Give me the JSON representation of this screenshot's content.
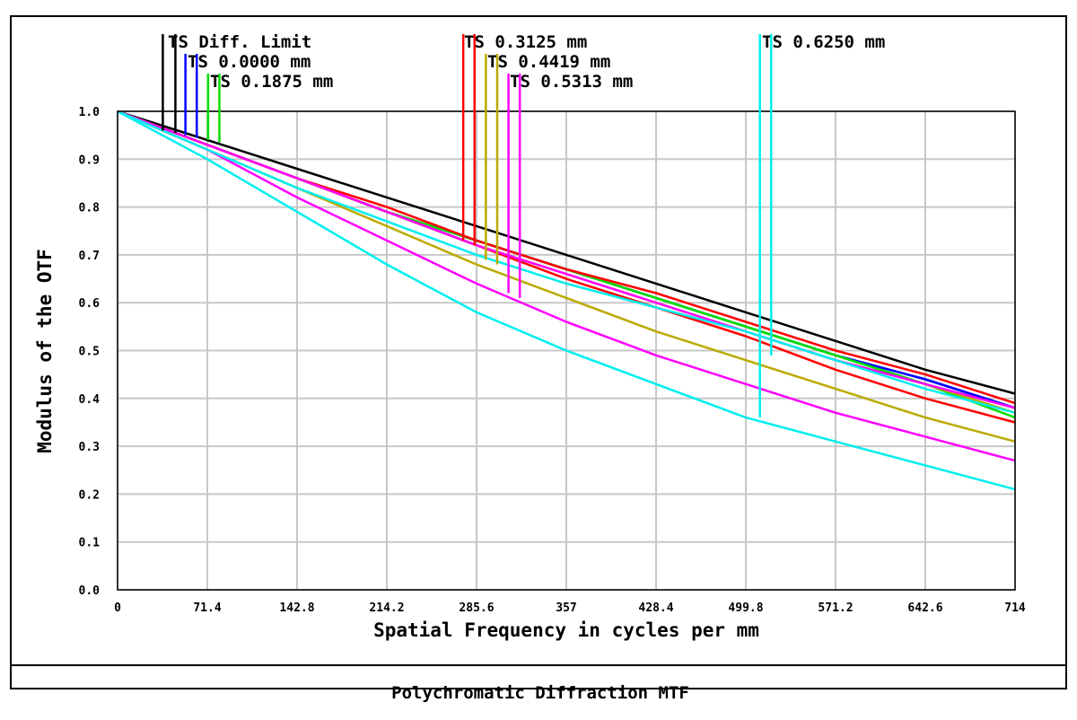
{
  "footer": {
    "title": "Polychromatic Diffraction MTF"
  },
  "chart_data": {
    "type": "line",
    "title": "Polychromatic Diffraction MTF",
    "xlabel": "Spatial Frequency in cycles per mm",
    "ylabel": "Modulus of the OTF",
    "xlim": [
      0,
      714
    ],
    "ylim": [
      0,
      1.0
    ],
    "xticks": [
      "0",
      "71.4",
      "142.8",
      "214.2",
      "285.6",
      "357",
      "428.4",
      "499.8",
      "571.2",
      "642.6",
      "714"
    ],
    "yticks": [
      "0.0",
      "0.1",
      "0.2",
      "0.3",
      "0.4",
      "0.5",
      "0.6",
      "0.7",
      "0.8",
      "0.9",
      "1.0"
    ],
    "grid": true,
    "legend_placement": "top",
    "x": [
      0,
      71.4,
      142.8,
      214.2,
      285.6,
      357,
      428.4,
      499.8,
      571.2,
      642.6,
      714
    ],
    "series": [
      {
        "name": "TS Diff. Limit",
        "color": "#000000",
        "values": [
          1.0,
          0.94,
          0.88,
          0.82,
          0.76,
          0.7,
          0.64,
          0.58,
          0.52,
          0.46,
          0.41
        ]
      },
      {
        "name": "TS 0.0000 mm",
        "color": "#0000ff",
        "values": [
          1.0,
          0.93,
          0.86,
          0.79,
          0.73,
          0.67,
          0.61,
          0.55,
          0.49,
          0.44,
          0.38
        ]
      },
      {
        "name": "TS 0.0000 mm",
        "color": "#0000ff",
        "values": [
          1.0,
          0.93,
          0.86,
          0.79,
          0.73,
          0.67,
          0.61,
          0.55,
          0.49,
          0.44,
          0.38
        ]
      },
      {
        "name": "TS 0.1875 mm",
        "color": "#00dd00",
        "values": [
          1.0,
          0.93,
          0.86,
          0.79,
          0.73,
          0.67,
          0.61,
          0.55,
          0.49,
          0.43,
          0.37
        ]
      },
      {
        "name": "TS 0.1875 mm",
        "color": "#00dd00",
        "values": [
          1.0,
          0.93,
          0.86,
          0.79,
          0.73,
          0.67,
          0.61,
          0.55,
          0.49,
          0.43,
          0.36
        ]
      },
      {
        "name": "TS 0.3125 mm",
        "color": "#ff0000",
        "values": [
          1.0,
          0.93,
          0.86,
          0.8,
          0.73,
          0.67,
          0.62,
          0.56,
          0.5,
          0.45,
          0.39
        ]
      },
      {
        "name": "TS 0.3125 mm",
        "color": "#ff0000",
        "values": [
          1.0,
          0.93,
          0.86,
          0.79,
          0.72,
          0.65,
          0.59,
          0.53,
          0.46,
          0.4,
          0.35
        ]
      },
      {
        "name": "TS 0.4419 mm",
        "color": "#bbaa00",
        "values": [
          1.0,
          0.93,
          0.86,
          0.79,
          0.72,
          0.66,
          0.6,
          0.54,
          0.48,
          0.43,
          0.37
        ]
      },
      {
        "name": "TS 0.4419 mm",
        "color": "#bbaa00",
        "values": [
          1.0,
          0.92,
          0.84,
          0.76,
          0.68,
          0.61,
          0.54,
          0.48,
          0.42,
          0.36,
          0.31
        ]
      },
      {
        "name": "TS 0.5313 mm",
        "color": "#ff00ff",
        "values": [
          1.0,
          0.93,
          0.86,
          0.79,
          0.72,
          0.66,
          0.6,
          0.54,
          0.48,
          0.43,
          0.38
        ]
      },
      {
        "name": "TS 0.5313 mm",
        "color": "#ff00ff",
        "values": [
          1.0,
          0.92,
          0.82,
          0.73,
          0.64,
          0.56,
          0.49,
          0.43,
          0.37,
          0.32,
          0.27
        ]
      },
      {
        "name": "TS 0.6250 mm",
        "color": "#00eeee",
        "values": [
          1.0,
          0.92,
          0.84,
          0.77,
          0.7,
          0.64,
          0.59,
          0.54,
          0.48,
          0.42,
          0.37
        ]
      },
      {
        "name": "TS 0.6250 mm",
        "color": "#00eeee",
        "values": [
          1.0,
          0.9,
          0.79,
          0.68,
          0.58,
          0.5,
          0.43,
          0.36,
          0.31,
          0.26,
          0.21
        ]
      }
    ],
    "legend": [
      {
        "label": "TS Diff. Limit",
        "colors": [
          "#000000",
          "#000000"
        ],
        "marker_x": [
          36,
          46
        ]
      },
      {
        "label": "TS 0.0000 mm",
        "colors": [
          "#0000ff",
          "#0000ff"
        ],
        "marker_x": [
          54,
          63
        ]
      },
      {
        "label": "TS 0.1875 mm",
        "colors": [
          "#00dd00",
          "#00dd00"
        ],
        "marker_x": [
          72,
          81
        ]
      },
      {
        "label": "TS 0.3125 mm",
        "colors": [
          "#ff0000",
          "#ff0000"
        ],
        "marker_x": [
          275,
          284
        ]
      },
      {
        "label": "TS 0.4419 mm",
        "colors": [
          "#bbaa00",
          "#bbaa00"
        ],
        "marker_x": [
          293,
          302
        ]
      },
      {
        "label": "TS 0.5313 mm",
        "colors": [
          "#ff00ff",
          "#ff00ff"
        ],
        "marker_x": [
          311,
          320
        ]
      },
      {
        "label": "TS 0.6250 mm",
        "colors": [
          "#00eeee",
          "#00eeee"
        ],
        "marker_x": [
          511,
          520
        ]
      }
    ]
  }
}
